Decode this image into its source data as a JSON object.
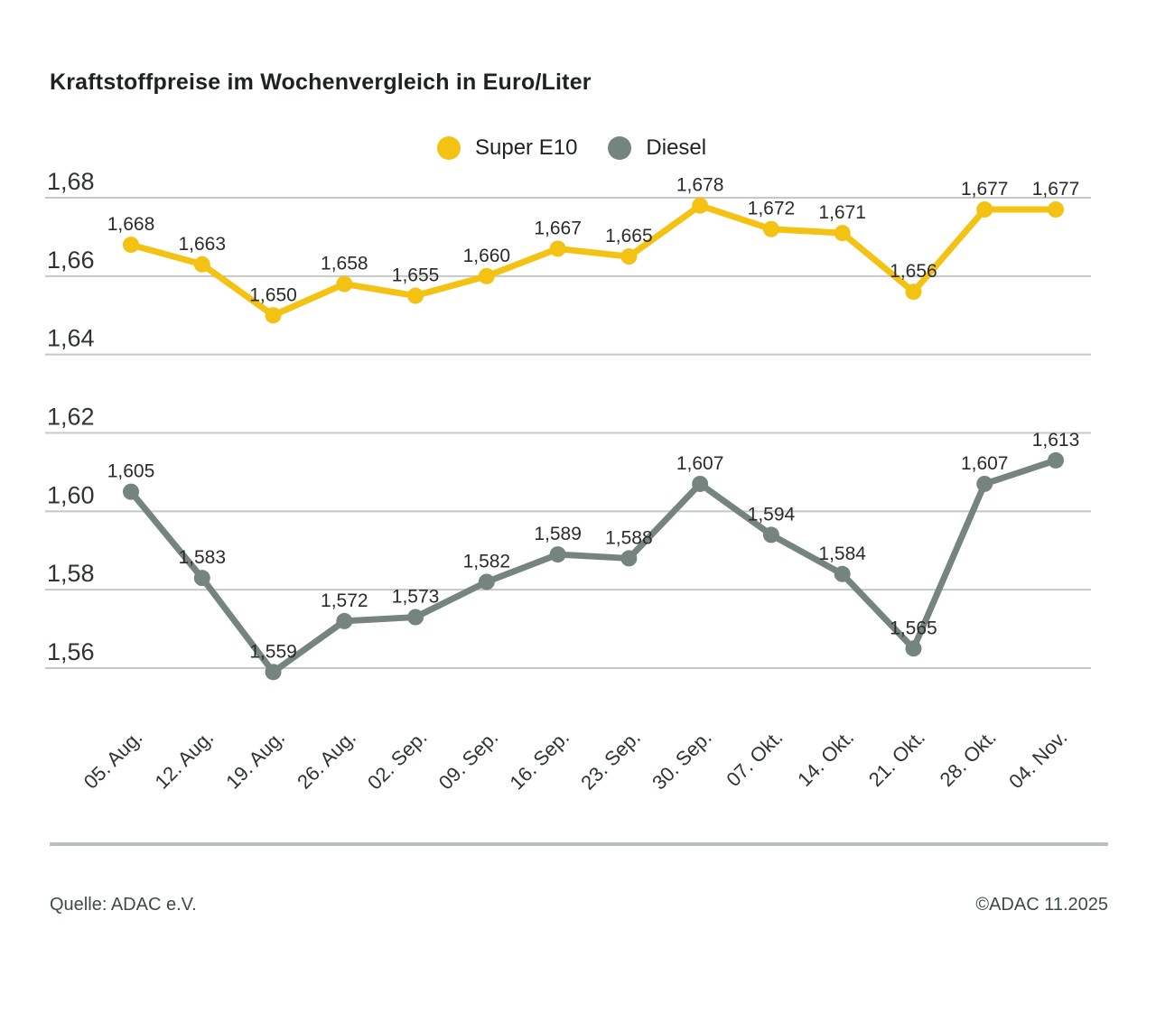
{
  "title": "Kraftstoffpreise im Wochenvergleich in Euro/Liter",
  "legend": {
    "items": [
      {
        "label": "Super E10",
        "icon": "yellow-dot"
      },
      {
        "label": "Diesel",
        "icon": "gray-dot"
      }
    ]
  },
  "footer": {
    "source": "Quelle: ADAC e.V.",
    "copyright": "©ADAC 11.2025"
  },
  "colors": {
    "super_e10": "#F3C213",
    "diesel": "#76847F",
    "gridline": "#C4C8C7",
    "divider": "#B7BEBD",
    "title_text": "#1D2321",
    "axis_text": "#2E3431",
    "label_text": "#2B2B2B",
    "footer_text": "#3E4A48"
  },
  "chart_data": {
    "type": "line",
    "title": "Kraftstoffpreise im Wochenvergleich in Euro/Liter",
    "unit": "Euro/Liter",
    "categories": [
      "05. Aug.",
      "12. Aug.",
      "19. Aug.",
      "26. Aug.",
      "02. Sep.",
      "09. Sep.",
      "16. Sep.",
      "23. Sep.",
      "30. Sep.",
      "07. Okt.",
      "14. Okt.",
      "21. Okt.",
      "28. Okt.",
      "04. Nov."
    ],
    "series": [
      {
        "name": "Super E10",
        "color": "#F3C213",
        "values": [
          1.668,
          1.663,
          1.65,
          1.658,
          1.655,
          1.66,
          1.667,
          1.665,
          1.678,
          1.672,
          1.671,
          1.656,
          1.677,
          1.677
        ]
      },
      {
        "name": "Diesel",
        "color": "#76847F",
        "values": [
          1.605,
          1.583,
          1.559,
          1.572,
          1.573,
          1.582,
          1.589,
          1.588,
          1.607,
          1.594,
          1.584,
          1.565,
          1.607,
          1.613
        ]
      }
    ],
    "ylim": [
      1.56,
      1.68
    ],
    "yticks": [
      1.68,
      1.66,
      1.64,
      1.62,
      1.6,
      1.58,
      1.56
    ],
    "grid": true,
    "legend_position": "top-center",
    "decimal_separator": ",",
    "value_decimals": 3,
    "tick_decimals": 2
  }
}
